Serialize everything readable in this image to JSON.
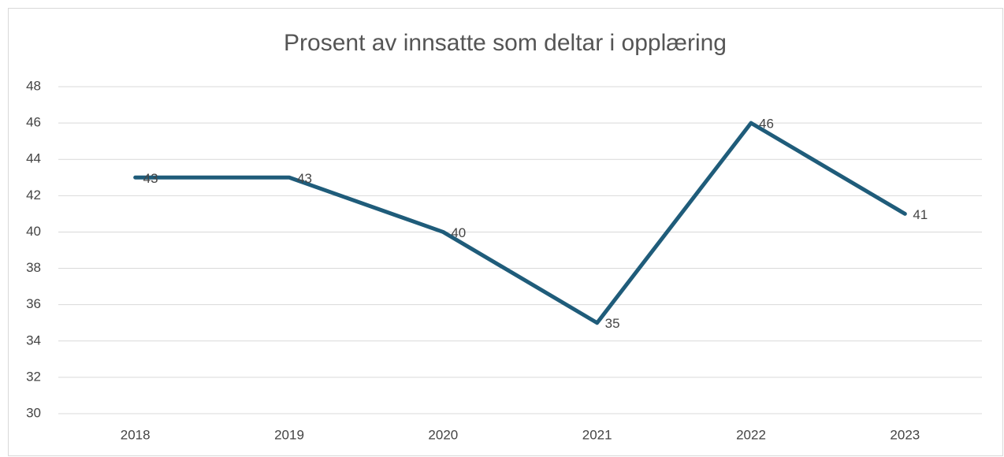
{
  "chart_data": {
    "type": "line",
    "title": "Prosent av innsatte som deltar i opplæring",
    "categories": [
      "2018",
      "2019",
      "2020",
      "2021",
      "2022",
      "2023"
    ],
    "series": [
      {
        "name": "Prosent",
        "color": "#1f5c7a",
        "values": [
          43,
          43,
          40,
          35,
          46,
          41
        ]
      }
    ],
    "ylim": [
      30,
      48
    ],
    "yticks": [
      30,
      32,
      34,
      36,
      38,
      40,
      42,
      44,
      46,
      48
    ],
    "grid": true
  }
}
